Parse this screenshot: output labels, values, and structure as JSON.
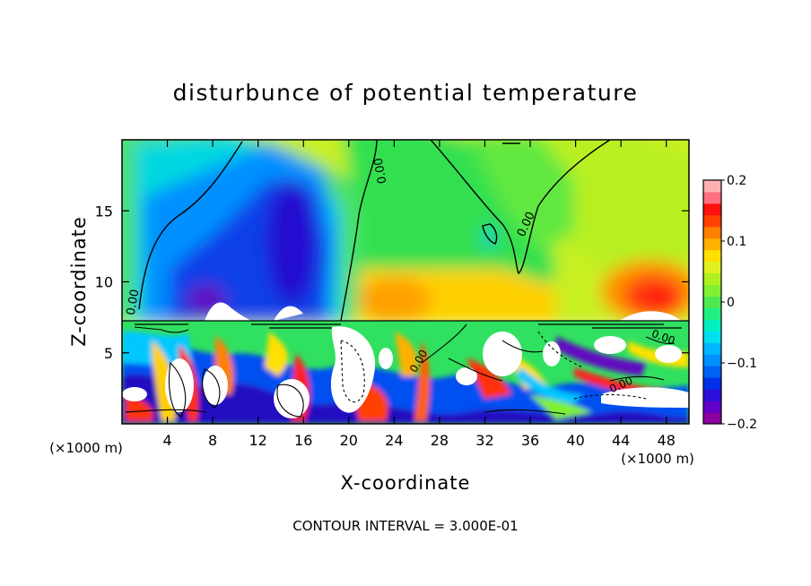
{
  "chart_data": {
    "type": "heatmap",
    "title": "disturbunce of potential temperature",
    "xlabel": "X-coordinate",
    "ylabel": "Z-coordinate",
    "x_unit": "(×1000 m)",
    "y_unit": "(×1000 m)",
    "xlim": [
      0,
      50
    ],
    "ylim": [
      0,
      20
    ],
    "x_ticks": [
      4,
      8,
      12,
      16,
      20,
      24,
      28,
      32,
      36,
      40,
      44,
      48
    ],
    "y_ticks": [
      5,
      10,
      15
    ],
    "colorbar": {
      "range": [
        -0.2,
        0.2
      ],
      "tick_labels": [
        "0.2",
        "0.1",
        "0",
        "−0.1",
        "−0.2"
      ],
      "tick_values": [
        0.2,
        0.1,
        0,
        -0.1,
        -0.2
      ],
      "colors": [
        "#8a00a0",
        "#6000c8",
        "#2a10d8",
        "#0030e8",
        "#0060f4",
        "#0090ff",
        "#00b8ff",
        "#00e0f0",
        "#00f0c0",
        "#20f080",
        "#50e850",
        "#80f030",
        "#b0f020",
        "#e0f020",
        "#ffe000",
        "#ffb000",
        "#ff8000",
        "#ff4000",
        "#ff1010",
        "#ff7080",
        "#ffb0b0"
      ]
    },
    "contour_labels": [
      "0.00",
      "0.00",
      "0.00",
      "0.00",
      "0.00",
      "0.00"
    ],
    "contour_interval_text": "CONTOUR INTERVAL = 3.000E-01",
    "upper_anomalies": [
      {
        "x": 16,
        "z": 14,
        "value": -0.16
      },
      {
        "x": 11,
        "z": 10,
        "value": -0.12
      },
      {
        "x": 46,
        "z": 9,
        "value": 0.15
      },
      {
        "x": 25,
        "z": 9,
        "value": 0.08
      },
      {
        "x": 36,
        "z": 12,
        "value": 0.03
      }
    ]
  }
}
